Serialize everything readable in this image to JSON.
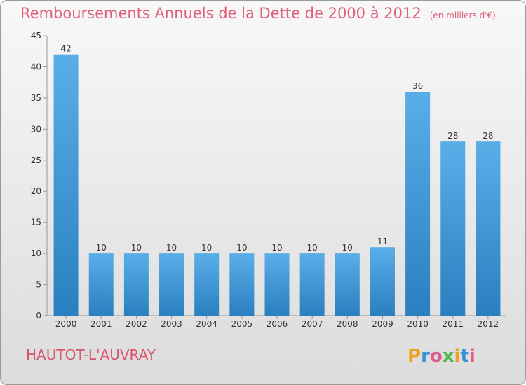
{
  "chart_data": {
    "type": "bar",
    "title": "Remboursements Annuels de la Dette de 2000 à 2012",
    "unit_note": "(en milliers d'€)",
    "categories": [
      "2000",
      "2001",
      "2002",
      "2003",
      "2004",
      "2005",
      "2006",
      "2007",
      "2008",
      "2009",
      "2010",
      "2011",
      "2012"
    ],
    "values": [
      42,
      10,
      10,
      10,
      10,
      10,
      10,
      10,
      10,
      11,
      36,
      28,
      28
    ],
    "ylim": [
      0,
      45
    ],
    "yticks": [
      0,
      5,
      10,
      15,
      20,
      25,
      30,
      35,
      40,
      45
    ],
    "xlabel": "",
    "ylabel": "",
    "grid": false,
    "bar_color_light": "#5aaee8",
    "bar_color_dark": "#2a7fc0"
  },
  "footer": {
    "commune": "HAUTOT-L'AUVRAY",
    "logo_text": "Proxiti"
  }
}
